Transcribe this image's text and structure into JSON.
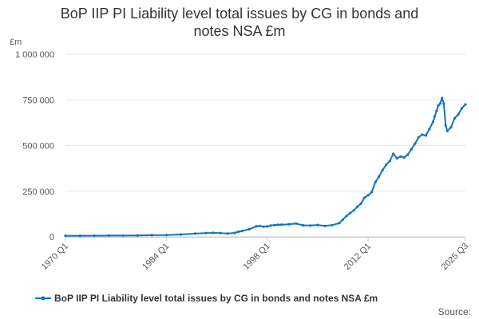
{
  "chart_data": {
    "type": "line",
    "title_line1": "BoP IIP PI Liability level total issues by CG in bonds and",
    "title_line2": "notes NSA £m",
    "ylabel": "£m",
    "xlabel": "",
    "ylim": [
      0,
      1000000
    ],
    "yticks": [
      {
        "value": 0,
        "label": "0"
      },
      {
        "value": 250000,
        "label": "250 000"
      },
      {
        "value": 500000,
        "label": "500 000"
      },
      {
        "value": 750000,
        "label": "750 000"
      },
      {
        "value": 1000000,
        "label": "1 000 000"
      }
    ],
    "xlim": [
      1970.0,
      2025.5
    ],
    "xticks": [
      {
        "value": 1970.0,
        "label": "1970 Q1"
      },
      {
        "value": 1984.0,
        "label": "1984 Q1"
      },
      {
        "value": 1998.0,
        "label": "1998 Q1"
      },
      {
        "value": 2012.0,
        "label": "2012 Q1"
      },
      {
        "value": 2025.5,
        "label": "2025 Q3"
      }
    ],
    "grid": "horizontal",
    "legend_position": "bottom",
    "series": [
      {
        "name": "BoP IIP PI Liability level total issues by CG in bonds and notes NSA £m",
        "color": "#0f75bc",
        "x": [
          1970.0,
          1972.0,
          1974.0,
          1976.0,
          1978.0,
          1980.0,
          1982.0,
          1984.0,
          1986.0,
          1988.0,
          1989.5,
          1990.5,
          1991.5,
          1992.5,
          1993.5,
          1994.0,
          1994.5,
          1995.5,
          1996.5,
          1997.0,
          1997.5,
          1998.0,
          1998.5,
          1999.0,
          1999.5,
          2000.0,
          2001.0,
          2002.0,
          2003.0,
          2004.0,
          2005.0,
          2006.0,
          2007.0,
          2008.0,
          2008.5,
          2009.0,
          2009.5,
          2010.0,
          2010.5,
          2011.0,
          2011.5,
          2012.0,
          2012.5,
          2013.0,
          2013.5,
          2014.0,
          2014.5,
          2015.0,
          2015.5,
          2016.0,
          2016.5,
          2017.0,
          2017.5,
          2018.0,
          2018.5,
          2019.0,
          2019.5,
          2020.0,
          2020.5,
          2021.0,
          2021.25,
          2021.5,
          2021.75,
          2022.0,
          2022.25,
          2022.5,
          2022.75,
          2023.0,
          2023.5,
          2024.0,
          2024.5,
          2025.0,
          2025.5
        ],
        "y": [
          6000,
          6000,
          6500,
          7000,
          7000,
          8000,
          9000,
          10000,
          13000,
          18000,
          21000,
          22000,
          21000,
          18000,
          22000,
          28000,
          32000,
          42000,
          58000,
          60000,
          56000,
          57000,
          62000,
          64000,
          66000,
          67000,
          69000,
          73000,
          63000,
          62000,
          65000,
          60000,
          64000,
          75000,
          95000,
          115000,
          130000,
          145000,
          165000,
          182000,
          215000,
          228000,
          245000,
          300000,
          330000,
          365000,
          395000,
          415000,
          455000,
          430000,
          440000,
          435000,
          450000,
          480000,
          510000,
          545000,
          560000,
          555000,
          590000,
          630000,
          660000,
          690000,
          720000,
          730000,
          760000,
          730000,
          610000,
          580000,
          600000,
          650000,
          670000,
          705000,
          725000
        ]
      }
    ]
  },
  "source_label": "Source:"
}
